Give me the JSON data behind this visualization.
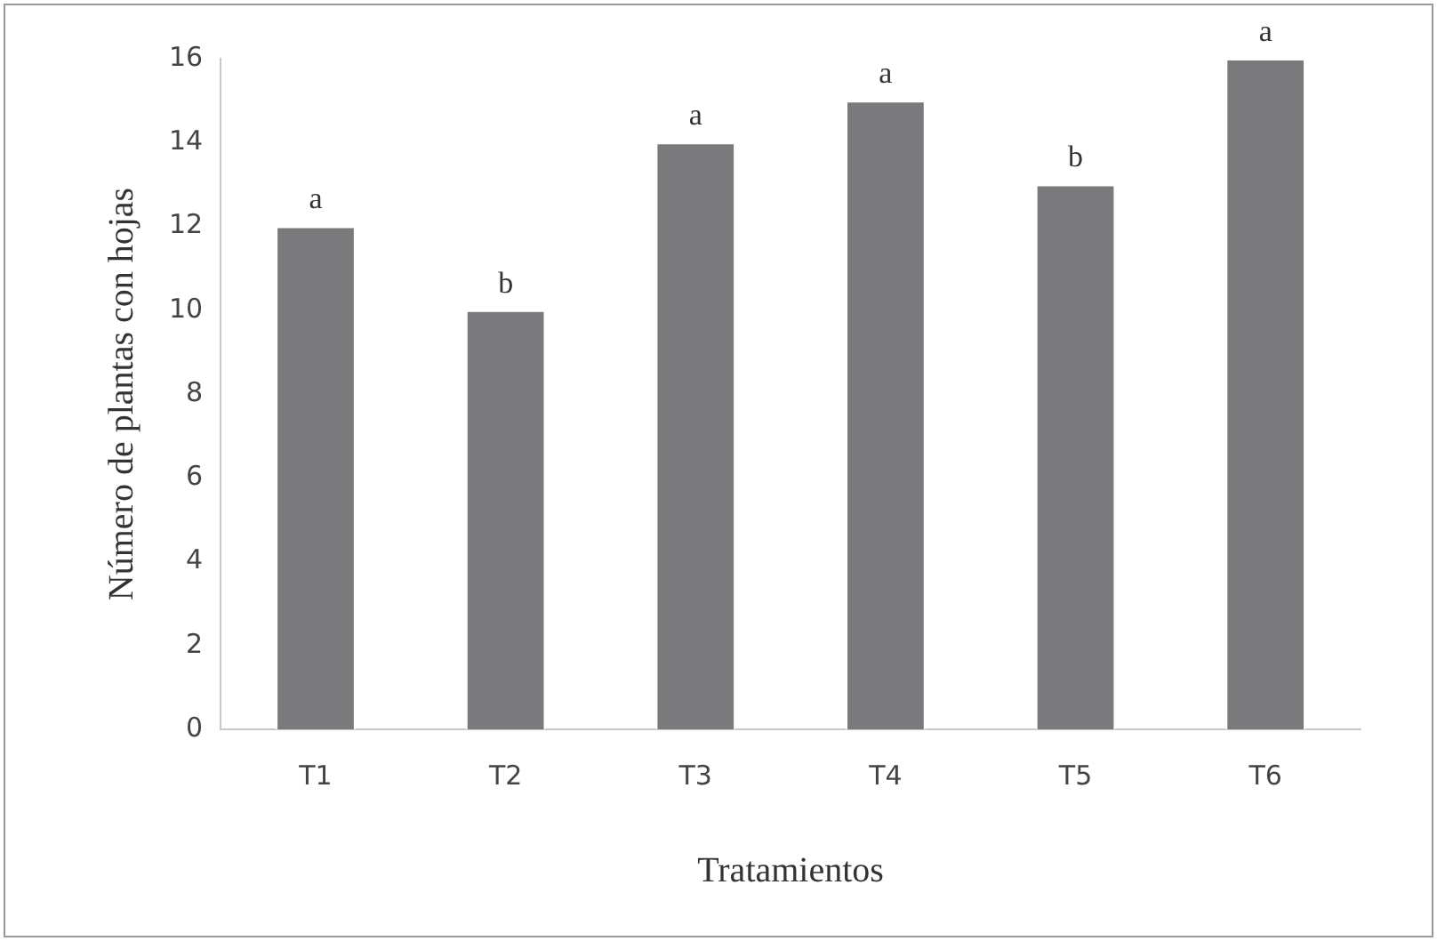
{
  "chart_data": {
    "type": "bar",
    "xlabel": "Tratamientos",
    "ylabel": "Número de plantas con hojas",
    "categories": [
      "T1",
      "T2",
      "T3",
      "T4",
      "T5",
      "T6"
    ],
    "values": [
      12,
      10,
      14,
      15,
      13,
      16
    ],
    "color": "#7a7a7c",
    "ylim": [
      0,
      16
    ],
    "yticks": [
      0,
      2,
      4,
      6,
      8,
      10,
      12,
      14,
      16
    ],
    "grid": false,
    "annotations": [
      {
        "text": "a",
        "x": "T1",
        "y": 12
      },
      {
        "text": "b",
        "x": "T2",
        "y": 10
      },
      {
        "text": "a",
        "x": "T3",
        "y": 14
      },
      {
        "text": "a",
        "x": "T4",
        "y": 15
      },
      {
        "text": "b",
        "x": "T5",
        "y": 13
      },
      {
        "text": "a",
        "x": "T6",
        "y": 16
      }
    ]
  }
}
